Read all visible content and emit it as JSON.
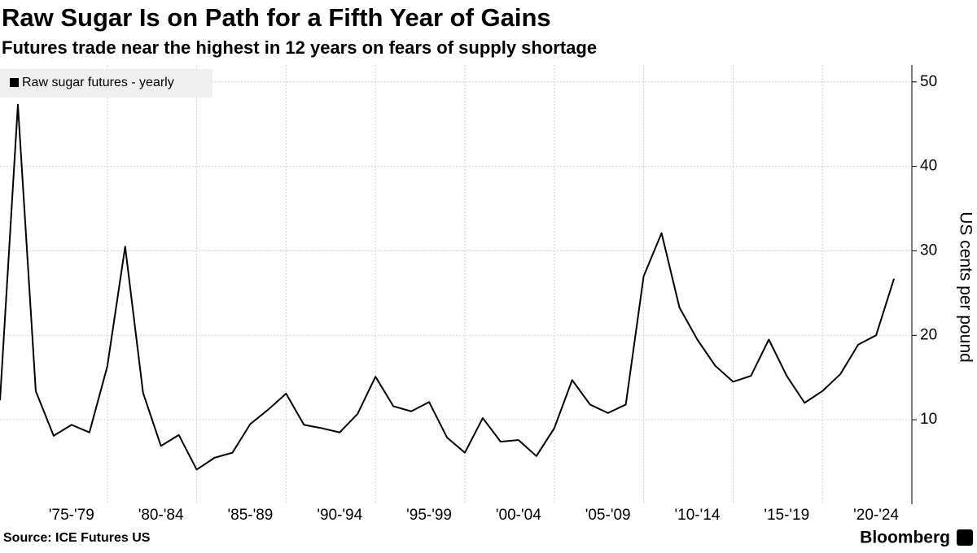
{
  "chart_data": {
    "type": "line",
    "title": "Raw Sugar Is on Path for a Fifth Year of Gains",
    "subtitle": "Futures trade near the highest in 12 years on fears of supply shortage",
    "y_label": "US cents per pound",
    "source": "Source: ICE Futures US",
    "brand": "Bloomberg",
    "x": [
      1973,
      1974,
      1975,
      1976,
      1977,
      1978,
      1979,
      1980,
      1981,
      1982,
      1983,
      1984,
      1985,
      1986,
      1987,
      1988,
      1989,
      1990,
      1991,
      1992,
      1993,
      1994,
      1995,
      1996,
      1997,
      1998,
      1999,
      2000,
      2001,
      2002,
      2003,
      2004,
      2005,
      2006,
      2007,
      2008,
      2009,
      2010,
      2011,
      2012,
      2013,
      2014,
      2015,
      2016,
      2017,
      2018,
      2019,
      2020,
      2021,
      2022,
      2023
    ],
    "series": [
      {
        "name": "Raw sugar futures - yearly",
        "color": "#000000",
        "values": [
          12.3,
          47.3,
          13.4,
          8.1,
          9.4,
          8.5,
          16.3,
          30.5,
          13.2,
          6.9,
          8.2,
          4.1,
          5.5,
          6.1,
          9.5,
          11.2,
          13.1,
          9.4,
          9.0,
          8.5,
          10.7,
          15.1,
          11.6,
          11.0,
          12.1,
          7.9,
          6.1,
          10.2,
          7.4,
          7.6,
          5.7,
          9.0,
          14.7,
          11.8,
          10.8,
          11.8,
          27.0,
          32.1,
          23.3,
          19.5,
          16.4,
          14.5,
          15.2,
          19.5,
          15.2,
          12.0,
          13.4,
          15.4,
          18.9,
          20.0,
          26.7
        ]
      }
    ],
    "xlim": [
      1973,
      2024
    ],
    "xticks": [
      {
        "value": 1977,
        "label": "'75-'79"
      },
      {
        "value": 1982,
        "label": "'80-'84"
      },
      {
        "value": 1987,
        "label": "'85-'89"
      },
      {
        "value": 1992,
        "label": "'90-'94"
      },
      {
        "value": 1997,
        "label": "'95-'99"
      },
      {
        "value": 2002,
        "label": "'00-'04"
      },
      {
        "value": 2007,
        "label": "'05-'09"
      },
      {
        "value": 2012,
        "label": "'10-'14"
      },
      {
        "value": 2017,
        "label": "'15-'19"
      },
      {
        "value": 2022,
        "label": "'20-'24"
      }
    ],
    "xgrid": [
      1979,
      1984,
      1989,
      1994,
      1999,
      2004,
      2009,
      2014,
      2019
    ],
    "ylim": [
      0,
      52
    ],
    "yticks": [
      10,
      20,
      30,
      40,
      50
    ],
    "grid": true,
    "legend": "top-left"
  }
}
